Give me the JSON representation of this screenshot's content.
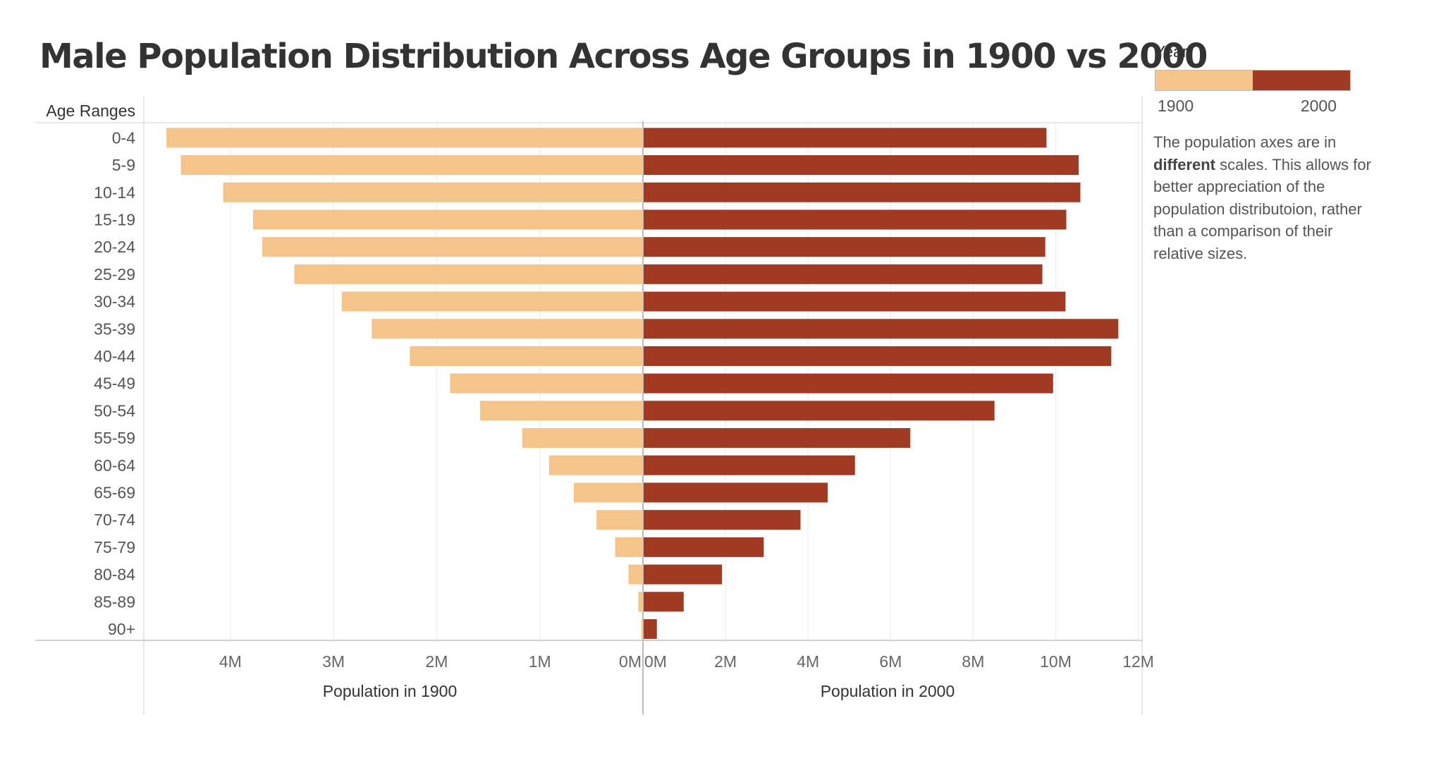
{
  "title": "Male Population Distribution Across Age Groups in 1900 vs 2000",
  "legend": {
    "title": "Year",
    "items": [
      {
        "label": "1900",
        "color": "#F5C48A"
      },
      {
        "label": "2000",
        "color": "#A13A23"
      }
    ]
  },
  "note": {
    "part1": "The population axes are in ",
    "bold": "different",
    "part2": " scales. This allows for better appreciation of the population distributoion, rather than a comparison of their relative sizes."
  },
  "chart_data": {
    "type": "bar",
    "orientation": "horizontal",
    "category_axis_title": "Age Ranges",
    "categories": [
      "0-4",
      "5-9",
      "10-14",
      "15-19",
      "20-24",
      "25-29",
      "30-34",
      "35-39",
      "40-44",
      "45-49",
      "50-54",
      "55-59",
      "60-64",
      "65-69",
      "70-74",
      "75-79",
      "80-84",
      "85-89",
      "90+"
    ],
    "series": [
      {
        "name": "1900",
        "color": "#F5C48A",
        "direction": "left",
        "xlabel": "Population in 1900",
        "xlim": [
          0,
          4800000
        ],
        "ticks": [
          0,
          1000000,
          2000000,
          3000000,
          4000000
        ],
        "tick_labels": [
          "0M",
          "1M",
          "2M",
          "3M",
          "4M"
        ],
        "values": [
          4620000,
          4480000,
          4070000,
          3780000,
          3690000,
          3380000,
          2920000,
          2630000,
          2260000,
          1870000,
          1580000,
          1170000,
          910000,
          670000,
          450000,
          270000,
          140000,
          45000,
          15000
        ]
      },
      {
        "name": "2000",
        "color": "#A13A23",
        "direction": "right",
        "xlabel": "Population in 2000",
        "xlim": [
          0,
          12000000
        ],
        "ticks": [
          0,
          2000000,
          4000000,
          6000000,
          8000000,
          10000000,
          12000000
        ],
        "tick_labels": [
          "0M",
          "2M",
          "4M",
          "6M",
          "8M",
          "10M",
          "12M"
        ],
        "values": [
          9760000,
          10540000,
          10580000,
          10240000,
          9730000,
          9660000,
          10220000,
          11500000,
          11330000,
          9920000,
          8500000,
          6460000,
          5120000,
          4460000,
          3800000,
          2910000,
          1900000,
          970000,
          320000
        ]
      }
    ],
    "grid": true
  }
}
